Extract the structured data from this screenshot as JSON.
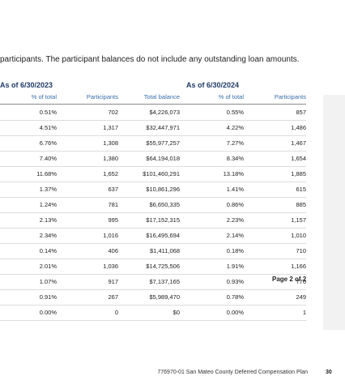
{
  "intro_text": "participants. The participant balances do not include any outstanding loan amounts.",
  "section_2023": "As of 6/30/2023",
  "section_2024": "As of 6/30/2024",
  "headers": [
    "% of total",
    "Participants",
    "Total balance",
    "% of total",
    "Participants"
  ],
  "rows": [
    [
      "0.51%",
      "702",
      "$4,226,073",
      "0.55%",
      "857"
    ],
    [
      "4.51%",
      "1,317",
      "$32,447,971",
      "4.22%",
      "1,486"
    ],
    [
      "6.76%",
      "1,308",
      "$55,977,257",
      "7.27%",
      "1,467"
    ],
    [
      "7.40%",
      "1,380",
      "$64,194,018",
      "8.34%",
      "1,654"
    ],
    [
      "11.68%",
      "1,652",
      "$101,460,291",
      "13.18%",
      "1,885"
    ],
    [
      "1.37%",
      "637",
      "$10,861,296",
      "1.41%",
      "615"
    ],
    [
      "1.24%",
      "781",
      "$6,650,335",
      "0.86%",
      "885"
    ],
    [
      "2.13%",
      "995",
      "$17,152,315",
      "2.23%",
      "1,157"
    ],
    [
      "2.34%",
      "1,016",
      "$16,495,694",
      "2.14%",
      "1,010"
    ],
    [
      "0.14%",
      "406",
      "$1,411,068",
      "0.18%",
      "710"
    ],
    [
      "2.01%",
      "1,036",
      "$14,725,506",
      "1.91%",
      "1,166"
    ],
    [
      "1.07%",
      "917",
      "$7,137,165",
      "0.93%",
      "776"
    ],
    [
      "0.91%",
      "267",
      "$5,989,470",
      "0.78%",
      "249"
    ],
    [
      "0.00%",
      "0",
      "$0",
      "0.00%",
      "1"
    ]
  ],
  "page_marker": "Page 2 of 2",
  "footer_text": "776970-01 San Mateo County Deferred Compensation Plan",
  "footer_page_number": "30"
}
